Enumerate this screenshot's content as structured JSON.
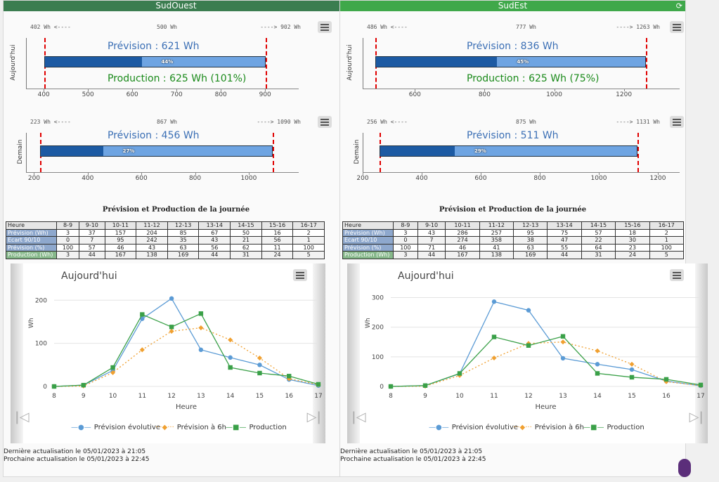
{
  "panels": [
    {
      "name": "SudOuest",
      "header_color": "#3b7d50",
      "today": {
        "label": "Aujourd'hui",
        "min_text": "402 Wh <----",
        "mid_text": "500 Wh",
        "max_text": "----> 902 Wh",
        "min": 402,
        "max": 902,
        "forecast": 621,
        "axis_min": 360,
        "axis_max": 960,
        "ticks": [
          400,
          500,
          600,
          700,
          800,
          900
        ],
        "pct_text": "44%",
        "pct": 0.44,
        "prevision_text": "Prévision : 621 Wh",
        "production_text": "Production : 625 Wh (101%)"
      },
      "tomorrow": {
        "label": "Demain",
        "min_text": "223 Wh <----",
        "mid_text": "867 Wh",
        "max_text": "----> 1090 Wh",
        "min": 223,
        "max": 1090,
        "forecast": 456,
        "axis_min": 170,
        "axis_max": 1160,
        "ticks": [
          200,
          400,
          600,
          800,
          1000
        ],
        "pct_text": "27%",
        "pct": 0.27,
        "prevision_text": "Prévision : 456 Wh"
      },
      "table": {
        "title": "Prévision et Production de la journée",
        "headers": [
          "Heure",
          "8-9",
          "9-10",
          "10-11",
          "11-12",
          "12-13",
          "13-14",
          "14-15",
          "15-16",
          "16-17"
        ],
        "rows": [
          {
            "label": "Prévision (Wh)",
            "color": "#8ea8cd",
            "values": [
              "3",
              "37",
              "157",
              "204",
              "85",
              "67",
              "50",
              "16",
              "2"
            ]
          },
          {
            "label": "Ecart 90/10",
            "color": "#8ea8cd",
            "values": [
              "0",
              "7",
              "95",
              "242",
              "35",
              "43",
              "21",
              "56",
              "1"
            ]
          },
          {
            "label": "Prévision (%)",
            "color": "#8ea8cd",
            "values": [
              "100",
              "57",
              "46",
              "43",
              "63",
              "56",
              "62",
              "11",
              "100"
            ]
          },
          {
            "label": "Production (Wh)",
            "color": "#86b88a",
            "values": [
              "3",
              "44",
              "167",
              "138",
              "169",
              "44",
              "31",
              "24",
              "5"
            ]
          }
        ]
      },
      "chart": {
        "title": "Aujourd'hui",
        "ylabel": "Wh",
        "xlabel": "Heure",
        "x": [
          8,
          9,
          10,
          11,
          12,
          13,
          14,
          15,
          16,
          17
        ],
        "ymax": 220,
        "yticks": [
          0,
          100,
          200
        ],
        "series": [
          {
            "name": "Prévision évolutive",
            "color": "#5b9bd5",
            "values": [
              0,
              3,
              37,
              157,
              204,
              85,
              67,
              50,
              16,
              2
            ]
          },
          {
            "name": "Prévision à 6h",
            "color": "#f0a030",
            "values": [
              0,
              1,
              32,
              85,
              128,
              136,
              108,
              66,
              18,
              4
            ]
          },
          {
            "name": "Production",
            "color": "#3aa048",
            "values": [
              0,
              3,
              44,
              167,
              138,
              169,
              44,
              31,
              24,
              5
            ]
          }
        ]
      },
      "footer": [
        "Dernière actualisation le 05/01/2023 à 21:05",
        "Prochaine actualisation le 05/01/2023 à 22:45"
      ]
    },
    {
      "name": "SudEst",
      "header_color": "#3fa84a",
      "today": {
        "label": "Aujourd'hui",
        "min_text": "486 Wh <----",
        "mid_text": "777 Wh",
        "max_text": "----> 1263 Wh",
        "min": 486,
        "max": 1263,
        "forecast": 836,
        "axis_min": 450,
        "axis_max": 1340,
        "ticks": [
          600,
          800,
          1000,
          1200
        ],
        "pct_text": "45%",
        "pct": 0.45,
        "prevision_text": "Prévision : 836 Wh",
        "production_text": "Production : 625 Wh (75%)"
      },
      "tomorrow": {
        "label": "Demain",
        "min_text": "256 Wh <----",
        "mid_text": "875 Wh",
        "max_text": "----> 1131 Wh",
        "min": 256,
        "max": 1131,
        "forecast": 511,
        "axis_min": 200,
        "axis_max": 1250,
        "ticks": [
          200,
          400,
          600,
          800,
          1000,
          1200
        ],
        "pct_text": "29%",
        "pct": 0.29,
        "prevision_text": "Prévision : 511 Wh"
      },
      "table": {
        "title": "Prévision et Production de la journée",
        "headers": [
          "Heure",
          "8-9",
          "9-10",
          "10-11",
          "11-12",
          "12-13",
          "13-14",
          "14-15",
          "15-16",
          "16-17"
        ],
        "rows": [
          {
            "label": "Prévision (Wh)",
            "color": "#8ea8cd",
            "values": [
              "3",
              "43",
              "286",
              "257",
              "95",
              "75",
              "57",
              "18",
              "2"
            ]
          },
          {
            "label": "Ecart 90/10",
            "color": "#8ea8cd",
            "values": [
              "0",
              "7",
              "274",
              "358",
              "38",
              "47",
              "22",
              "30",
              "1"
            ]
          },
          {
            "label": "Prévision (%)",
            "color": "#8ea8cd",
            "values": [
              "100",
              "71",
              "46",
              "41",
              "63",
              "55",
              "64",
              "23",
              "100"
            ]
          },
          {
            "label": "Production (Wh)",
            "color": "#86b88a",
            "values": [
              "3",
              "44",
              "167",
              "138",
              "169",
              "44",
              "31",
              "24",
              "5"
            ]
          }
        ]
      },
      "chart": {
        "title": "Aujourd'hui",
        "ylabel": "Wh",
        "xlabel": "Heure",
        "x": [
          8,
          9,
          10,
          11,
          12,
          13,
          14,
          15,
          16,
          17
        ],
        "ymax": 320,
        "yticks": [
          0,
          100,
          200,
          300
        ],
        "series": [
          {
            "name": "Prévision évolutive",
            "color": "#5b9bd5",
            "values": [
              0,
              3,
              43,
              286,
              257,
              95,
              75,
              57,
              18,
              2
            ]
          },
          {
            "name": "Prévision à 6h",
            "color": "#f0a030",
            "values": [
              0,
              1,
              37,
              96,
              145,
              150,
              120,
              75,
              16,
              3
            ]
          },
          {
            "name": "Production",
            "color": "#3aa048",
            "values": [
              0,
              3,
              44,
              167,
              138,
              169,
              44,
              31,
              24,
              5
            ]
          }
        ]
      },
      "footer": [
        "Dernière actualisation le 05/01/2023 à 21:05",
        "Prochaine actualisation le 05/01/2023 à 22:45"
      ]
    }
  ],
  "chart_data": [
    {
      "type": "line",
      "title": "Aujourd'hui",
      "xlabel": "Heure",
      "ylabel": "Wh",
      "x": [
        8,
        9,
        10,
        11,
        12,
        13,
        14,
        15,
        16,
        17
      ],
      "ylim": [
        0,
        220
      ],
      "series": [
        {
          "name": "Prévision évolutive",
          "values": [
            0,
            3,
            37,
            157,
            204,
            85,
            67,
            50,
            16,
            2
          ]
        },
        {
          "name": "Prévision à 6h",
          "values": [
            0,
            1,
            32,
            85,
            128,
            136,
            108,
            66,
            18,
            4
          ]
        },
        {
          "name": "Production",
          "values": [
            0,
            3,
            44,
            167,
            138,
            169,
            44,
            31,
            24,
            5
          ]
        }
      ]
    },
    {
      "type": "line",
      "title": "Aujourd'hui",
      "xlabel": "Heure",
      "ylabel": "Wh",
      "x": [
        8,
        9,
        10,
        11,
        12,
        13,
        14,
        15,
        16,
        17
      ],
      "ylim": [
        0,
        320
      ],
      "series": [
        {
          "name": "Prévision évolutive",
          "values": [
            0,
            3,
            43,
            286,
            257,
            95,
            75,
            57,
            18,
            2
          ]
        },
        {
          "name": "Prévision à 6h",
          "values": [
            0,
            1,
            37,
            96,
            145,
            150,
            120,
            75,
            16,
            3
          ]
        },
        {
          "name": "Production",
          "values": [
            0,
            3,
            44,
            167,
            138,
            169,
            44,
            31,
            24,
            5
          ]
        }
      ]
    }
  ]
}
